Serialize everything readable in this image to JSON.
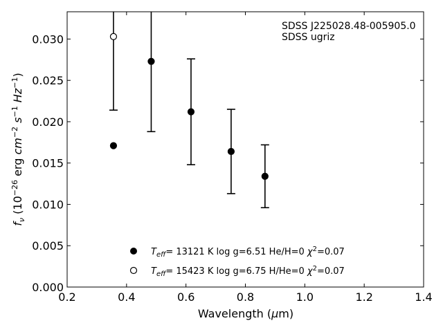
{
  "chart_data": {
    "type": "scatter",
    "annotation": [
      "SDSS J225028.48-005905.0",
      "SDSS ugriz"
    ],
    "xlabel": "Wavelength (μm)",
    "ylabel": "f_ν (10^-26 erg cm^-2 s^-1 Hz^-1)",
    "xlim": [
      0.2,
      1.4
    ],
    "ylim": [
      0.0,
      0.0333
    ],
    "xticks": [
      "0.2",
      "0.4",
      "0.6",
      "0.8",
      "1.0",
      "1.2",
      "1.4"
    ],
    "yticks": [
      "0.000",
      "0.005",
      "0.010",
      "0.015",
      "0.020",
      "0.025",
      "0.030"
    ],
    "grid": false,
    "legend_position": "bottom-center",
    "observed": {
      "x": [
        0.356,
        0.483,
        0.617,
        0.752,
        0.866
      ],
      "y": [
        0.0303,
        0.0273,
        0.0212,
        0.0164,
        0.0134
      ],
      "yerr": [
        0.0089,
        0.0085,
        0.0064,
        0.0051,
        0.0038
      ]
    },
    "series": [
      {
        "name": "T_eff= 13121 K  log g=6.51  He/H=0  χ²=0.07",
        "marker": "filled-circle",
        "x": [
          0.356,
          0.483,
          0.617,
          0.752,
          0.866
        ],
        "y": [
          0.0171,
          0.0273,
          0.0212,
          0.0164,
          0.0134
        ]
      },
      {
        "name": "T_eff= 15423 K  log g=6.75  H/He=0  χ²=0.07",
        "marker": "open-circle",
        "x": [
          0.356
        ],
        "y": [
          0.0303
        ]
      }
    ]
  }
}
